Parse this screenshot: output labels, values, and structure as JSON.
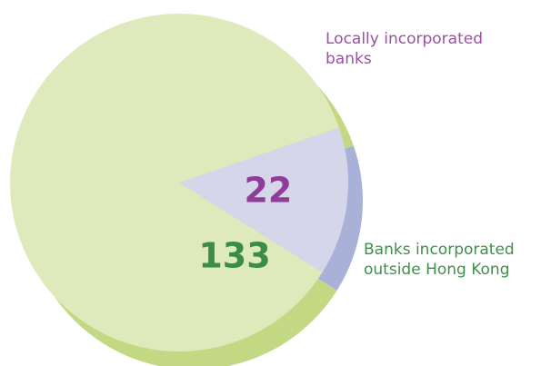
{
  "chart_data": {
    "type": "pie",
    "title": "",
    "legend": "none",
    "slices": [
      {
        "label": "Locally incorporated banks",
        "label_lines": [
          "Locally incorporated",
          "banks"
        ],
        "value": 22,
        "value_label": "22",
        "fill": "#d6d6ea",
        "edge": "#a9b1d8",
        "value_color": "#8f3d99",
        "label_color": "#9b4fa5"
      },
      {
        "label": "Banks incorporated outside Hong Kong",
        "label_lines": [
          "Banks incorporated",
          "outside Hong Kong"
        ],
        "value": 133,
        "value_label": "133",
        "fill": "#dfeabc",
        "edge": "#c2d882",
        "value_color": "#3a8c46",
        "label_color": "#3f8f4b"
      }
    ]
  }
}
